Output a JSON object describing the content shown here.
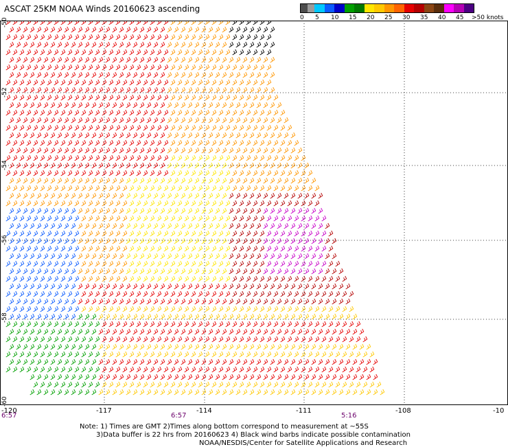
{
  "title": "ASCAT 25KM NOAA Winds 20160623 ascending",
  "legend": {
    "colors": [
      "#4d4d4d",
      "#9b9b9b",
      "#00c8ff",
      "#0a5bff",
      "#0000c8",
      "#00a000",
      "#007800",
      "#ffe600",
      "#ffc800",
      "#ff9600",
      "#ff6400",
      "#e60000",
      "#b40000",
      "#8b4513",
      "#5a2d0c",
      "#ff00ff",
      "#b400b4",
      "#4b0082"
    ],
    "ticks": [
      "0",
      "5",
      "10",
      "15",
      "20",
      "25",
      "30",
      "35",
      "40",
      "45",
      ">50 knots"
    ]
  },
  "latitudes": [
    "-50",
    "-52",
    "-54",
    "-56",
    "-58",
    "-60"
  ],
  "longitudes": [
    "-120",
    "-117",
    "-114",
    "-111",
    "-108",
    "-10"
  ],
  "times": [
    "6:57",
    "6:57",
    "5:16"
  ],
  "notes": [
    "Note: 1) Times are GMT 2)Times along bottom correspond to measurement at ~55S",
    "3)Data buffer is 22 hrs from 20160623 4) Black wind barbs indicate possible contamination",
    "NOAA/NESDIS/Center for Satellite Applications and Research"
  ]
}
